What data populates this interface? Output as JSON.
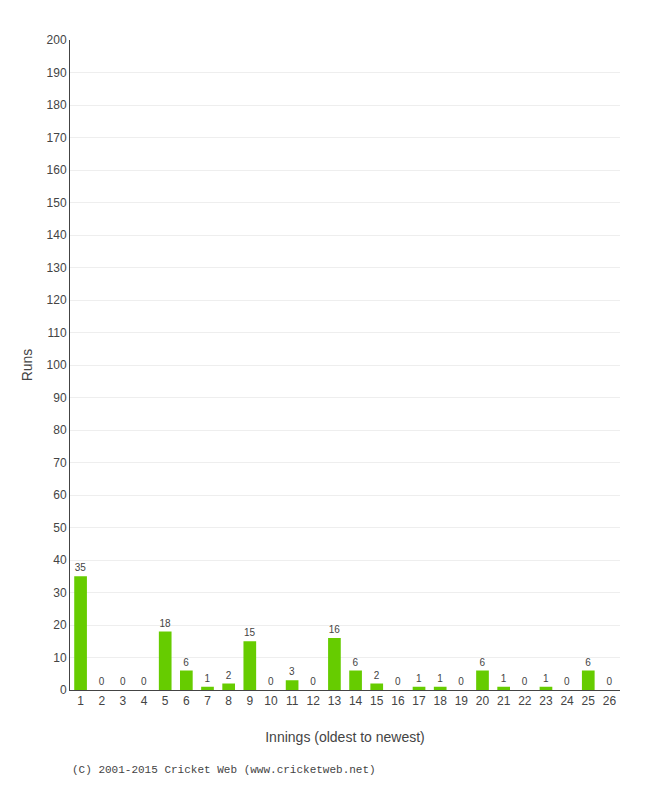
{
  "chart_data": {
    "type": "bar",
    "categories": [
      "1",
      "2",
      "3",
      "4",
      "5",
      "6",
      "7",
      "8",
      "9",
      "10",
      "11",
      "12",
      "13",
      "14",
      "15",
      "16",
      "17",
      "18",
      "19",
      "20",
      "21",
      "22",
      "23",
      "24",
      "25",
      "26"
    ],
    "values": [
      35,
      0,
      0,
      0,
      18,
      6,
      1,
      2,
      15,
      0,
      3,
      0,
      16,
      6,
      2,
      0,
      1,
      1,
      0,
      6,
      1,
      0,
      1,
      0,
      6,
      0
    ],
    "color": "#66cc00",
    "xlabel": "Innings (oldest to newest)",
    "ylabel": "Runs",
    "ylim": [
      0,
      200
    ],
    "yticks": [
      0,
      10,
      20,
      30,
      40,
      50,
      60,
      70,
      80,
      90,
      100,
      110,
      120,
      130,
      140,
      150,
      160,
      170,
      180,
      190,
      200
    ],
    "grid": true,
    "data_labels": true,
    "annotations": [
      "(C) 2001-2015 Cricket Web (www.cricketweb.net)"
    ]
  }
}
